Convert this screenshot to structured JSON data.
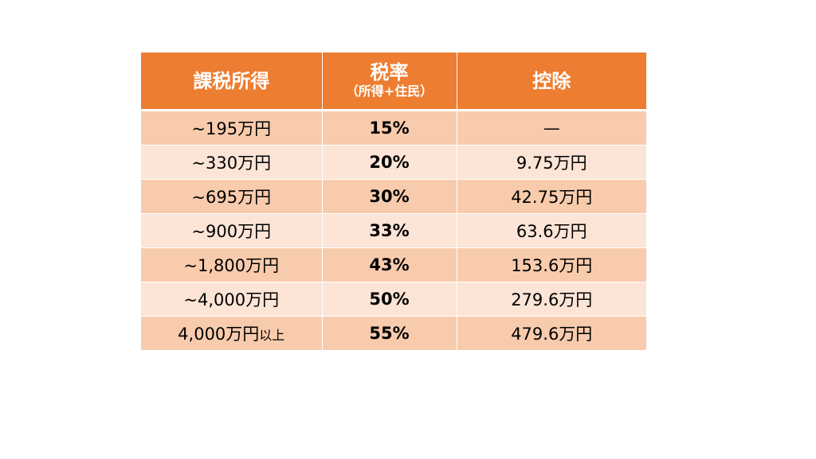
{
  "table": {
    "headers": {
      "income": "課税所得",
      "rate_title": "税率",
      "rate_subtitle": "（所得+住民）",
      "deduction": "控除"
    },
    "rows": [
      {
        "income": "~195万円",
        "income_suffix": "",
        "rate": "15%",
        "deduction": "—"
      },
      {
        "income": "~330万円",
        "income_suffix": "",
        "rate": "20%",
        "deduction": "9.75万円"
      },
      {
        "income": "~695万円",
        "income_suffix": "",
        "rate": "30%",
        "deduction": "42.75万円"
      },
      {
        "income": "~900万円",
        "income_suffix": "",
        "rate": "33%",
        "deduction": "63.6万円"
      },
      {
        "income": "~1,800万円",
        "income_suffix": "",
        "rate": "43%",
        "deduction": "153.6万円"
      },
      {
        "income": "~4,000万円",
        "income_suffix": "",
        "rate": "50%",
        "deduction": "279.6万円"
      },
      {
        "income": "4,000万円",
        "income_suffix": "以上",
        "rate": "55%",
        "deduction": "479.6万円"
      }
    ]
  }
}
